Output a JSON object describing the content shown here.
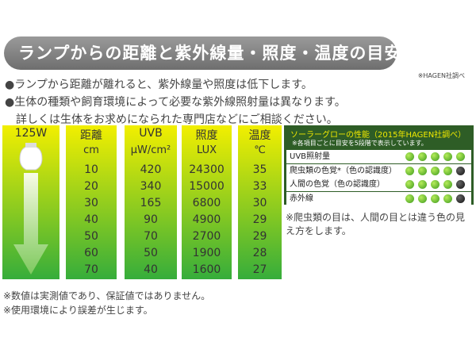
{
  "header": {
    "title": "ランプからの距離と紫外線量・照度・温度の目安",
    "source": "※HAGEN社調べ"
  },
  "bullets": [
    "●ランプから距離が離れると、紫外線量や照度は低下します。",
    "●生体の種類や飼育環境によって必要な紫外線照射量は異なります。",
    "詳しくは生体をお求めになられた専門店などにご相談ください。"
  ],
  "table": {
    "lamp": "125W",
    "columns": [
      {
        "name": "距離",
        "unit": "cm",
        "values": [
          "10",
          "20",
          "30",
          "40",
          "50",
          "60",
          "70"
        ]
      },
      {
        "name": "UVB",
        "unit": "μW/cm²",
        "values": [
          "420",
          "340",
          "165",
          "90",
          "70",
          "50",
          "40"
        ]
      },
      {
        "name": "照度",
        "unit": "LUX",
        "values": [
          "24300",
          "15000",
          "6800",
          "4900",
          "2700",
          "1900",
          "1600"
        ]
      },
      {
        "name": "温度",
        "unit": "℃",
        "values": [
          "35",
          "33",
          "30",
          "29",
          "29",
          "28",
          "27"
        ]
      }
    ]
  },
  "ratings": {
    "title": "ソーラーグローの性能（2015年HAGEN社調べ）",
    "subtitle": "※各項目ごとに目安を5段階で表示しています。",
    "scale": 5,
    "rows": [
      {
        "label": "UVB照射量",
        "value": 5
      },
      {
        "label": "爬虫類の色覚*（色の認識度）",
        "value": 4
      },
      {
        "label": "人間の色覚（色の認識度）",
        "value": 4
      },
      {
        "label": "赤外線",
        "value": 4
      }
    ],
    "note": "※爬虫類の目は、人間の目とは違う色の見え方をします。"
  },
  "footnotes": [
    "※数値は実測値であり、保証値ではありません。",
    "※使用環境により誤差が生じます。"
  ]
}
